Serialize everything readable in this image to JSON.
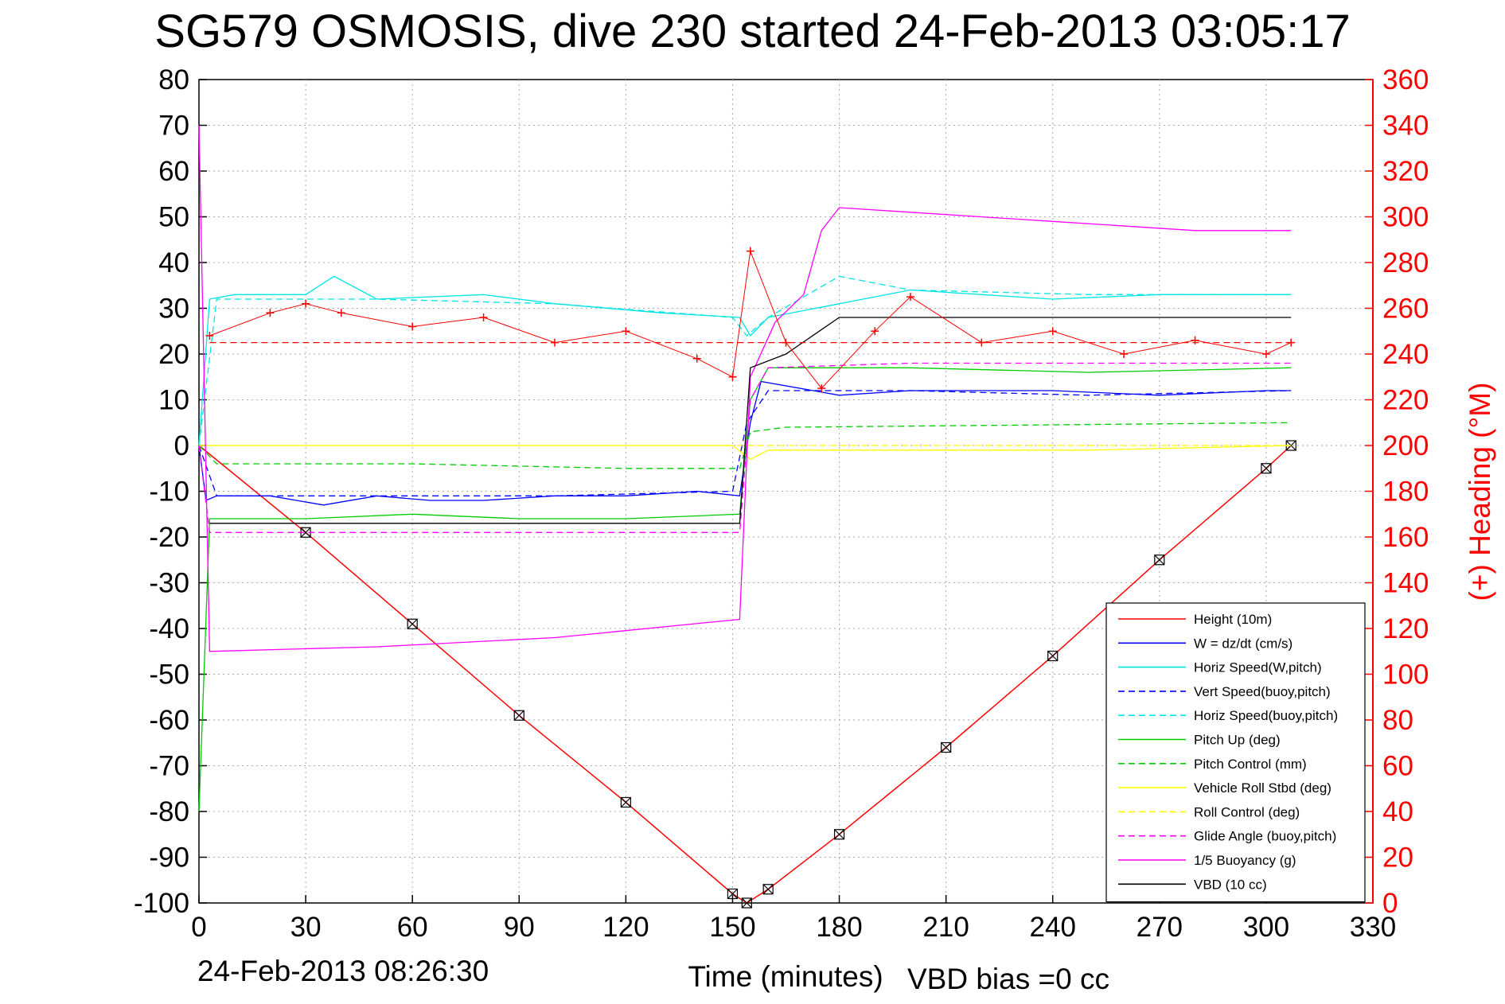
{
  "chart_data": {
    "type": "line",
    "title": "SG579 OSMOSIS, dive 230 started 24-Feb-2013 03:05:17",
    "xlabel": "Time (minutes)",
    "ylabel": "",
    "y2label": "(+) Heading (°M)",
    "xlim": [
      0,
      330
    ],
    "ylim": [
      -100,
      80
    ],
    "y2lim": [
      0,
      360
    ],
    "xticks": [
      "0",
      "30",
      "60",
      "90",
      "120",
      "150",
      "180",
      "210",
      "240",
      "270",
      "300",
      "330"
    ],
    "yticks": [
      "80",
      "70",
      "60",
      "50",
      "40",
      "30",
      "20",
      "10",
      "0",
      "-10",
      "-20",
      "-30",
      "-40",
      "-50",
      "-60",
      "-70",
      "-80",
      "-90",
      "-100"
    ],
    "y2ticks": [
      "360",
      "340",
      "320",
      "300",
      "280",
      "260",
      "240",
      "220",
      "200",
      "180",
      "160",
      "140",
      "120",
      "100",
      "80",
      "60",
      "40",
      "20",
      "0"
    ],
    "grid": true,
    "legend_position": "bottom-right",
    "footer_left": "24-Feb-2013 08:26:30",
    "footer_right": "VBD bias =0 cc",
    "series": [
      {
        "name": "Height (10m)",
        "color": "#ff0000",
        "style": "solid",
        "x": [
          0,
          30,
          60,
          90,
          120,
          150,
          154,
          160,
          180,
          210,
          240,
          270,
          300,
          307
        ],
        "y": [
          0,
          -19,
          -39,
          -59,
          -78,
          -98,
          -100,
          -97,
          -85,
          -66,
          -46,
          -25,
          -5,
          0
        ]
      },
      {
        "name": "W = dz/dt (cm/s)",
        "color": "#0000ff",
        "style": "solid",
        "x": [
          0,
          2,
          5,
          20,
          35,
          50,
          65,
          80,
          100,
          120,
          140,
          152,
          155,
          158,
          180,
          200,
          240,
          270,
          300,
          307
        ],
        "y": [
          0,
          -12,
          -11,
          -11,
          -13,
          -11,
          -12,
          -12,
          -11,
          -11,
          -10,
          -11,
          5,
          14,
          11,
          12,
          12,
          11,
          12,
          12
        ]
      },
      {
        "name": "Horiz Speed(W,pitch)",
        "color": "#00e5e5",
        "style": "solid",
        "x": [
          0,
          3,
          10,
          30,
          38,
          50,
          80,
          100,
          130,
          152,
          155,
          160,
          180,
          200,
          240,
          270,
          300,
          307
        ],
        "y": [
          0,
          32,
          33,
          33,
          37,
          32,
          33,
          31,
          29,
          28,
          24,
          28,
          31,
          34,
          32,
          33,
          33,
          33
        ]
      },
      {
        "name": "Vert Speed(buoy,pitch)",
        "color": "#0000ff",
        "style": "dashed",
        "x": [
          0,
          5,
          50,
          100,
          150,
          154,
          160,
          200,
          250,
          307
        ],
        "y": [
          0,
          -11,
          -11,
          -11,
          -10,
          5,
          12,
          12,
          11,
          12
        ]
      },
      {
        "name": "Horiz Speed(buoy,pitch)",
        "color": "#00e5e5",
        "style": "dashed",
        "x": [
          0,
          5,
          50,
          100,
          150,
          154,
          160,
          180,
          200,
          250,
          307
        ],
        "y": [
          0,
          32,
          32,
          31,
          28,
          24,
          28,
          37,
          34,
          33,
          33
        ]
      },
      {
        "name": "Pitch Up (deg)",
        "color": "#00cc00",
        "style": "solid",
        "x": [
          0,
          3,
          30,
          60,
          90,
          120,
          152,
          155,
          160,
          200,
          250,
          307
        ],
        "y": [
          -80,
          -16,
          -16,
          -15,
          -16,
          -16,
          -15,
          10,
          17,
          17,
          16,
          17
        ]
      },
      {
        "name": "Pitch Control (mm)",
        "color": "#00cc00",
        "style": "dashed",
        "x": [
          0,
          5,
          60,
          120,
          152,
          155,
          165,
          307
        ],
        "y": [
          0,
          -4,
          -4,
          -5,
          -5,
          3,
          4,
          5
        ]
      },
      {
        "name": "Vehicle Roll Stbd (deg)",
        "color": "#ffff00",
        "style": "solid",
        "x": [
          0,
          3,
          60,
          120,
          150,
          155,
          160,
          200,
          250,
          307
        ],
        "y": [
          0,
          0,
          0,
          0,
          0,
          -3,
          -1,
          -1,
          -1,
          0
        ]
      },
      {
        "name": "Roll Control (deg)",
        "color": "#ffff00",
        "style": "dashed",
        "x": [
          0,
          307
        ],
        "y": [
          0,
          0
        ]
      },
      {
        "name": "Glide Angle (buoy,pitch)",
        "color": "#ff00ff",
        "style": "dashed",
        "x": [
          0,
          3,
          60,
          120,
          152,
          155,
          160,
          200,
          250,
          307
        ],
        "y": [
          0,
          -19,
          -19,
          -19,
          -19,
          10,
          17,
          18,
          18,
          18
        ]
      },
      {
        "name": "1/5 Buoyancy (g)",
        "color": "#ff00ff",
        "style": "solid",
        "x": [
          0,
          3,
          50,
          100,
          152,
          155,
          162,
          170,
          175,
          180,
          200,
          240,
          280,
          307
        ],
        "y": [
          70,
          -45,
          -44,
          -42,
          -38,
          15,
          27,
          33,
          47,
          52,
          51,
          49,
          47,
          47
        ]
      },
      {
        "name": "VBD (10 cc)",
        "color": "#000000",
        "style": "solid",
        "x": [
          3,
          152,
          155,
          165,
          180,
          307
        ],
        "y": [
          -17,
          -17,
          17,
          20,
          28,
          28
        ]
      }
    ],
    "heading": {
      "name": "(+) Heading",
      "color": "#ff0000",
      "reference_deg": 245,
      "x": [
        3,
        20,
        30,
        40,
        60,
        80,
        100,
        120,
        140,
        150,
        155,
        165,
        175,
        190,
        200,
        220,
        240,
        260,
        280,
        300,
        307
      ],
      "y": [
        248,
        258,
        262,
        258,
        252,
        256,
        245,
        250,
        238,
        230,
        285,
        245,
        225,
        250,
        265,
        245,
        250,
        240,
        246,
        240,
        245
      ]
    }
  }
}
